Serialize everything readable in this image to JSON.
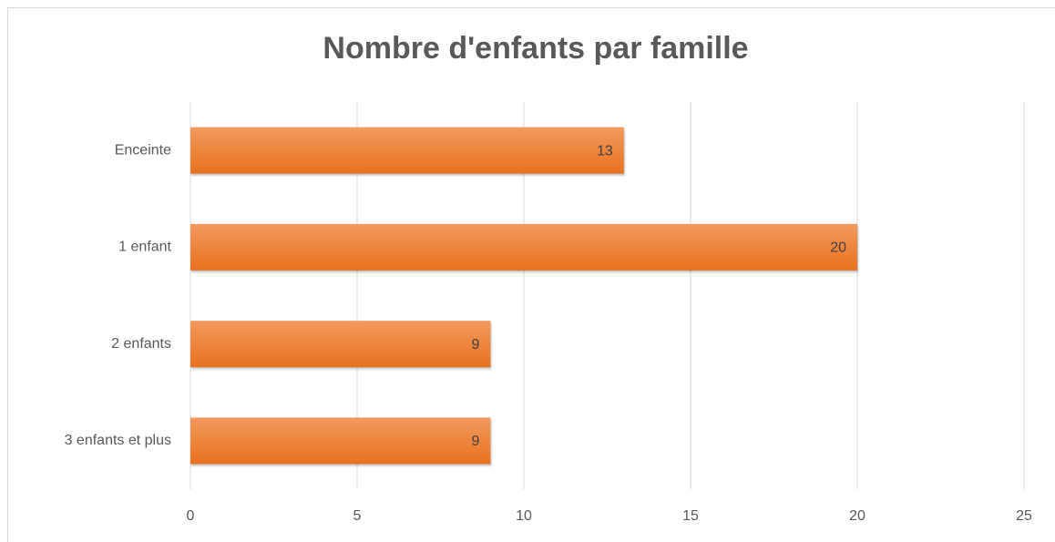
{
  "chart_data": {
    "type": "bar",
    "orientation": "horizontal",
    "title": "Nombre d'enfants par famille",
    "categories": [
      "Enceinte",
      "1 enfant",
      "2 enfants",
      "3 enfants et plus"
    ],
    "values": [
      13,
      20,
      9,
      9
    ],
    "color": "#ed7d31",
    "xlim": [
      0,
      25
    ],
    "xticks": [
      0,
      5,
      10,
      15,
      20,
      25
    ],
    "grid": true,
    "data_labels": true
  }
}
